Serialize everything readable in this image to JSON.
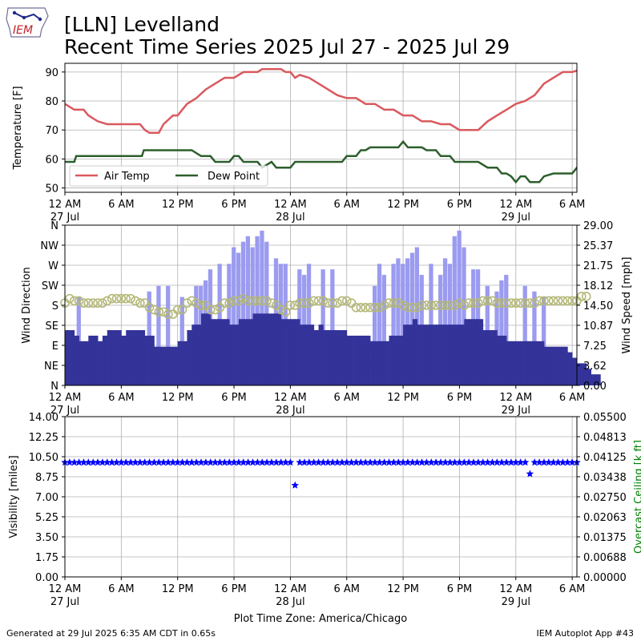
{
  "header": {
    "title_line1": "[LLN] Levelland",
    "title_line2": "Recent Time Series 2025 Jul 27 - 2025 Jul 29",
    "logo_text": "IEM"
  },
  "footer": {
    "generated": "Generated at 29 Jul 2025 6:35 AM CDT in 0.65s",
    "app": "IEM Autoplot App #43"
  },
  "xaxis": {
    "tick_hours": [
      0,
      6,
      12,
      18,
      24,
      30,
      36,
      42,
      48,
      54
    ],
    "tick_labels": [
      "12 AM",
      "6 AM",
      "12 PM",
      "6 PM",
      "12 AM",
      "6 AM",
      "12 PM",
      "6 PM",
      "12 AM",
      "6 AM"
    ],
    "date_labels": {
      "0": "27 Jul",
      "24": "28 Jul",
      "48": "29 Jul"
    },
    "xlim_hours": [
      0,
      54.5
    ],
    "start": "2025-07-27 12 AM",
    "label": "Plot Time Zone: America/Chicago"
  },
  "chart_data": [
    {
      "type": "line",
      "ylabel": "Temperature [F]",
      "ylim": [
        48.5,
        93
      ],
      "yticks": [
        50,
        60,
        70,
        80,
        90
      ],
      "grid": true,
      "legend": "lower-left",
      "series": [
        {
          "name": "Air Temp",
          "color": "#d9595e",
          "points": [
            [
              0,
              79
            ],
            [
              0.5,
              78
            ],
            [
              1,
              77
            ],
            [
              2,
              77
            ],
            [
              2.5,
              75
            ],
            [
              3.5,
              73
            ],
            [
              4.5,
              72
            ],
            [
              8,
              72
            ],
            [
              8.5,
              70
            ],
            [
              9,
              69
            ],
            [
              10,
              69
            ],
            [
              10.5,
              72
            ],
            [
              11.5,
              75
            ],
            [
              12,
              75
            ],
            [
              13,
              79
            ],
            [
              14,
              81
            ],
            [
              15,
              84
            ],
            [
              16,
              86
            ],
            [
              17,
              88
            ],
            [
              18,
              88
            ],
            [
              19,
              90
            ],
            [
              20.5,
              90
            ],
            [
              21,
              91
            ],
            [
              23,
              91
            ],
            [
              23.5,
              90
            ],
            [
              24,
              90
            ],
            [
              24.5,
              88
            ],
            [
              25,
              89
            ],
            [
              26,
              88
            ],
            [
              27,
              86
            ],
            [
              28,
              84
            ],
            [
              29,
              82
            ],
            [
              30,
              81
            ],
            [
              31,
              81
            ],
            [
              32,
              79
            ],
            [
              33,
              79
            ],
            [
              34,
              77
            ],
            [
              35,
              77
            ],
            [
              36,
              75
            ],
            [
              37,
              75
            ],
            [
              38,
              73
            ],
            [
              39,
              73
            ],
            [
              40,
              72
            ],
            [
              41,
              72
            ],
            [
              42,
              70
            ],
            [
              44,
              70
            ],
            [
              45,
              73
            ],
            [
              46,
              75
            ],
            [
              47,
              77
            ],
            [
              48,
              79
            ],
            [
              49,
              80
            ],
            [
              50,
              82
            ],
            [
              51,
              86
            ],
            [
              52,
              88
            ],
            [
              53,
              90
            ],
            [
              54,
              90
            ],
            [
              55,
              91
            ],
            [
              57,
              91
            ],
            [
              58,
              90
            ],
            [
              59,
              88
            ],
            [
              60,
              86
            ],
            [
              61,
              83
            ],
            [
              62,
              81
            ],
            [
              63,
              79
            ],
            [
              64,
              77
            ],
            [
              65,
              75
            ],
            [
              66,
              75
            ],
            [
              67,
              73
            ],
            [
              68,
              73
            ],
            [
              69,
              72
            ],
            [
              70,
              72
            ],
            [
              71,
              70
            ],
            [
              72,
              70
            ],
            [
              73,
              68
            ],
            [
              74,
              68
            ],
            [
              76,
              68
            ]
          ]
        },
        {
          "name": "Dew Point",
          "color": "#2d5f2d",
          "points": [
            [
              0,
              59
            ],
            [
              1,
              59
            ],
            [
              1.2,
              61
            ],
            [
              8,
              61
            ],
            [
              8.2,
              61
            ],
            [
              8.4,
              63
            ],
            [
              13.5,
              63
            ],
            [
              14.5,
              61
            ],
            [
              15.5,
              61
            ],
            [
              16,
              59
            ],
            [
              17.5,
              59
            ],
            [
              18,
              61
            ],
            [
              18.5,
              61
            ],
            [
              19,
              59
            ],
            [
              20.5,
              59
            ],
            [
              21,
              57
            ],
            [
              22,
              59
            ],
            [
              22.5,
              57
            ],
            [
              24,
              57
            ],
            [
              24.5,
              59
            ],
            [
              29.5,
              59
            ],
            [
              30,
              61
            ],
            [
              31,
              61
            ],
            [
              31.5,
              63
            ],
            [
              32,
              63
            ],
            [
              32.5,
              64
            ],
            [
              35.5,
              64
            ],
            [
              36,
              66
            ],
            [
              36.5,
              64
            ],
            [
              38,
              64
            ],
            [
              38.5,
              63
            ],
            [
              39.5,
              63
            ],
            [
              40,
              61
            ],
            [
              41,
              61
            ],
            [
              41.5,
              59
            ],
            [
              44,
              59
            ],
            [
              45,
              57
            ],
            [
              46,
              57
            ],
            [
              46.5,
              55
            ],
            [
              47,
              55
            ],
            [
              47.5,
              54
            ],
            [
              48,
              52
            ],
            [
              48.5,
              54
            ],
            [
              49,
              54
            ],
            [
              49.5,
              52
            ],
            [
              50.5,
              52
            ],
            [
              51,
              54
            ],
            [
              52,
              55
            ],
            [
              54,
              55
            ],
            [
              54.5,
              57
            ],
            [
              57,
              57
            ],
            [
              58,
              59
            ],
            [
              59,
              59
            ],
            [
              60,
              57
            ],
            [
              61,
              59
            ],
            [
              62,
              59
            ],
            [
              63,
              57
            ],
            [
              64,
              57
            ],
            [
              66,
              59
            ],
            [
              68,
              59
            ],
            [
              70,
              61
            ],
            [
              72,
              61
            ],
            [
              76,
              61
            ]
          ]
        }
      ]
    },
    {
      "type": "bar",
      "ylabel": "Wind Direction",
      "y2label": "Wind Speed [mph]",
      "yticklabels": [
        "N",
        "NE",
        "E",
        "SE",
        "S",
        "SW",
        "W",
        "NW",
        "N"
      ],
      "ylim_direction_deg": [
        0,
        360
      ],
      "ylim_speed_mph": [
        0,
        29
      ],
      "y2ticks": [
        "0.00",
        "3.62",
        "7.25",
        "10.87",
        "14.50",
        "18.12",
        "21.75",
        "25.37",
        "29.00"
      ],
      "grid": true,
      "bar_colors": {
        "speed": "#333399",
        "gust": "#9b9bf0"
      },
      "direction_color": "#b4b878",
      "wind_speed_mph": [
        10,
        10,
        10,
        10,
        9,
        9,
        8,
        8,
        8,
        8,
        9,
        9,
        9,
        9,
        8,
        8,
        9,
        9,
        10,
        10,
        10,
        10,
        10,
        10,
        9,
        9,
        10,
        10,
        10,
        10,
        10,
        10,
        10,
        10,
        9,
        9,
        9,
        9,
        7,
        7,
        7,
        7,
        7,
        7,
        7,
        7,
        7,
        7,
        8,
        8,
        8,
        8,
        10,
        10,
        11,
        11,
        11,
        11,
        13,
        13,
        13,
        13,
        12,
        12,
        12,
        12,
        12,
        12,
        12,
        12,
        11,
        11,
        11,
        11,
        12,
        12,
        12,
        12,
        12,
        12,
        13,
        13,
        13,
        13,
        13,
        13,
        13,
        13,
        13,
        13,
        13,
        13,
        12,
        12,
        12,
        12,
        12,
        12,
        12,
        12,
        11,
        11,
        11,
        11,
        11,
        11,
        10,
        10,
        11,
        11,
        10,
        10,
        10,
        10,
        10,
        10,
        10,
        10,
        10,
        10,
        9,
        9,
        9,
        9,
        9,
        9,
        9,
        9,
        9,
        9,
        8,
        8,
        8,
        8,
        8,
        8,
        8,
        8,
        9,
        9,
        9,
        9,
        9,
        9,
        11,
        11,
        11,
        11,
        12,
        12,
        11,
        11,
        11,
        11,
        11,
        11,
        11,
        11,
        11,
        11,
        11,
        11,
        11,
        11,
        11,
        11,
        11,
        11,
        11,
        11,
        12,
        12,
        12,
        12,
        12,
        12,
        12,
        12,
        10,
        10,
        10,
        10,
        10,
        10,
        9,
        9,
        9,
        9,
        8,
        8,
        8,
        8,
        8,
        8,
        8,
        8,
        8,
        8,
        8,
        8,
        8,
        8,
        8,
        8,
        7,
        7,
        7,
        7,
        7,
        7,
        7,
        7,
        7,
        7,
        6,
        6,
        5,
        5,
        4,
        4,
        4,
        4,
        3,
        3,
        2,
        2,
        2,
        2
      ],
      "gust_hours": [
        1.5,
        9.0,
        10.0,
        11.0,
        12.5,
        14.0,
        14.5,
        15.0,
        15.5,
        16.5,
        17.5,
        18.0,
        18.5,
        19.0,
        19.5,
        20.0,
        20.5,
        21.0,
        21.5,
        22.5,
        23.0,
        23.5,
        25.0,
        25.5,
        26.0,
        27.5,
        28.5,
        33.0,
        33.5,
        34.0,
        35.0,
        35.5,
        36.0,
        36.5,
        37.0,
        37.5,
        38.0,
        39.0,
        40.0,
        40.5,
        41.0,
        41.5,
        42.0,
        42.5,
        43.5,
        44.0,
        45.0,
        46.0,
        46.5,
        47.0,
        49.0,
        50.0,
        51.0
      ],
      "gust_mph": [
        16,
        17,
        18,
        18,
        16,
        18,
        18,
        19,
        21,
        22,
        22,
        25,
        24,
        26,
        27,
        25,
        27,
        28,
        26,
        23,
        22,
        22,
        21,
        20,
        22,
        21,
        21,
        18,
        22,
        20,
        22,
        23,
        22,
        23,
        24,
        25,
        20,
        22,
        20,
        23,
        22,
        27,
        28,
        25,
        21,
        21,
        18,
        17,
        19,
        20,
        18,
        17,
        16
      ],
      "wind_direction_deg": [
        185,
        190,
        195,
        195,
        190,
        195,
        190,
        185,
        185,
        185,
        185,
        185,
        185,
        185,
        185,
        185,
        185,
        190,
        190,
        195,
        195,
        195,
        195,
        195,
        195,
        195,
        195,
        195,
        195,
        190,
        190,
        185,
        185,
        185,
        185,
        180,
        175,
        180,
        170,
        170,
        165,
        165,
        165,
        160,
        160,
        160,
        160,
        160,
        170,
        170,
        170,
        175,
        185,
        190,
        190,
        190,
        185,
        185,
        180,
        180,
        180,
        180,
        170,
        170,
        170,
        170,
        175,
        175,
        185,
        185,
        185,
        190,
        190,
        190,
        190,
        195,
        195,
        195,
        190,
        190,
        190,
        195,
        190,
        190,
        190,
        190,
        190,
        185,
        185,
        185,
        180,
        175,
        170,
        170,
        165,
        175,
        180,
        180,
        180,
        185,
        185,
        185,
        185,
        185,
        185,
        190,
        190,
        185,
        190,
        190,
        190,
        190,
        185,
        185,
        185,
        185,
        185,
        190,
        190,
        190,
        190,
        185,
        185,
        180,
        175,
        175,
        175,
        175,
        175,
        175,
        175,
        175,
        175,
        175,
        175,
        180,
        180,
        180,
        185,
        185,
        185,
        185,
        185,
        185,
        180,
        180,
        175,
        175,
        175,
        175,
        175,
        175,
        180,
        180,
        180,
        180,
        180,
        180,
        180,
        180,
        180,
        180,
        180,
        180,
        180,
        180,
        180,
        185,
        185,
        180,
        180,
        185,
        185,
        185,
        185,
        185,
        185,
        185,
        190,
        190,
        190,
        190,
        190,
        190,
        185,
        185,
        185,
        185,
        185,
        185,
        185,
        185,
        185,
        185,
        185,
        185,
        185,
        185,
        185,
        185,
        185,
        185,
        190,
        190,
        190,
        190,
        190,
        190,
        190,
        190,
        190,
        190,
        190,
        190,
        190,
        190,
        190,
        190,
        190,
        190,
        200,
        200,
        200,
        200
      ]
    },
    {
      "type": "scatter",
      "ylabel": "Visibility [miles]",
      "y2label": "Overcast Ceiling [k ft]",
      "ylim": [
        0,
        14
      ],
      "yticks": [
        "0.00",
        "1.75",
        "3.50",
        "5.25",
        "7.00",
        "8.75",
        "10.50",
        "12.25",
        "14.00"
      ],
      "y2ticks": [
        "0.00000",
        "0.00688",
        "0.01375",
        "0.02063",
        "0.02750",
        "0.03438",
        "0.04125",
        "0.04813",
        "0.05500"
      ],
      "y2color": "#008000",
      "marker_color": "#0000ff",
      "marker": "star",
      "default_visibility": 10,
      "exceptions": [
        [
          24.5,
          8
        ],
        [
          49.5,
          9
        ]
      ]
    }
  ]
}
